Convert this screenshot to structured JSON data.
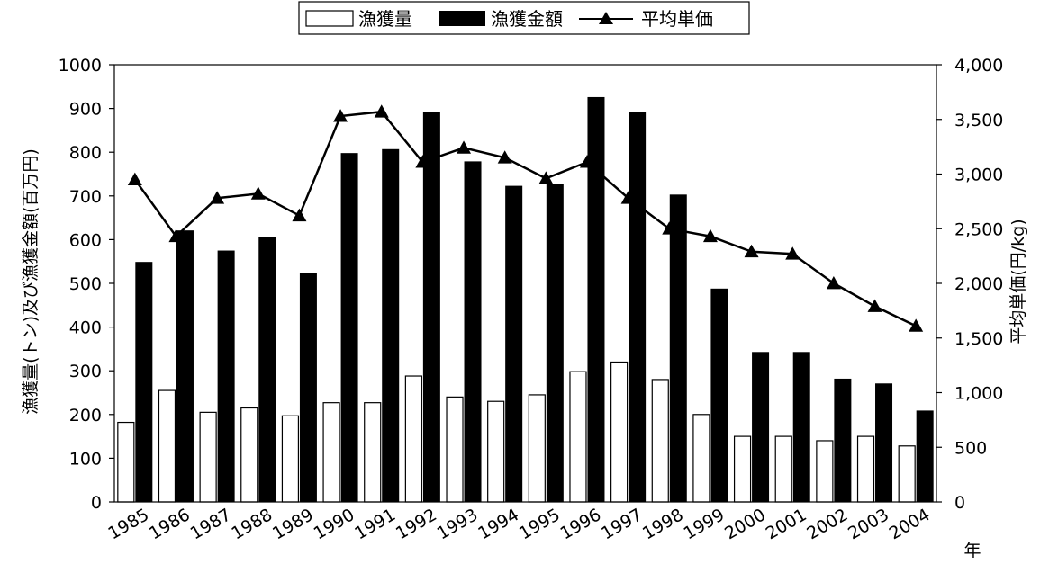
{
  "chart_data": {
    "type": "bar",
    "categories": [
      "1985",
      "1986",
      "1987",
      "1988",
      "1989",
      "1990",
      "1991",
      "1992",
      "1993",
      "1994",
      "1995",
      "1996",
      "1997",
      "1998",
      "1999",
      "2000",
      "2001",
      "2002",
      "2003",
      "2004"
    ],
    "series": [
      {
        "name": "漁獲量",
        "kind": "bar",
        "axis": "left",
        "fill": "#ffffff",
        "values": [
          182,
          255,
          205,
          215,
          197,
          227,
          227,
          288,
          240,
          230,
          245,
          298,
          320,
          280,
          200,
          150,
          150,
          140,
          150,
          128
        ]
      },
      {
        "name": "漁獲金額",
        "kind": "bar",
        "axis": "left",
        "fill": "#000000",
        "values": [
          548,
          620,
          574,
          605,
          522,
          797,
          806,
          890,
          778,
          722,
          727,
          925,
          890,
          702,
          487,
          342,
          342,
          281,
          270,
          208
        ]
      },
      {
        "name": "平均単価",
        "kind": "line",
        "axis": "right",
        "marker": "triangle",
        "values": [
          2950,
          2430,
          2780,
          2820,
          2620,
          3530,
          3570,
          3110,
          3240,
          3150,
          2960,
          3110,
          2780,
          2500,
          2430,
          2290,
          2270,
          2000,
          1790,
          1610
        ]
      }
    ],
    "ylabel_left": "漁獲量(トン)及び漁獲金額(百万円)",
    "ylabel_right": "平均単価(円/kg)",
    "xlabel": "年",
    "ylim_left": [
      0,
      1000
    ],
    "ylim_right": [
      0,
      4000
    ],
    "yticks_left": [
      "0",
      "100",
      "200",
      "300",
      "400",
      "500",
      "600",
      "700",
      "800",
      "900",
      "1000"
    ],
    "yticks_right": [
      "0",
      "500",
      "1,000",
      "1,500",
      "2,000",
      "2,500",
      "3,000",
      "3,500",
      "4,000"
    ],
    "legend_position": "top-center",
    "grid": false
  }
}
